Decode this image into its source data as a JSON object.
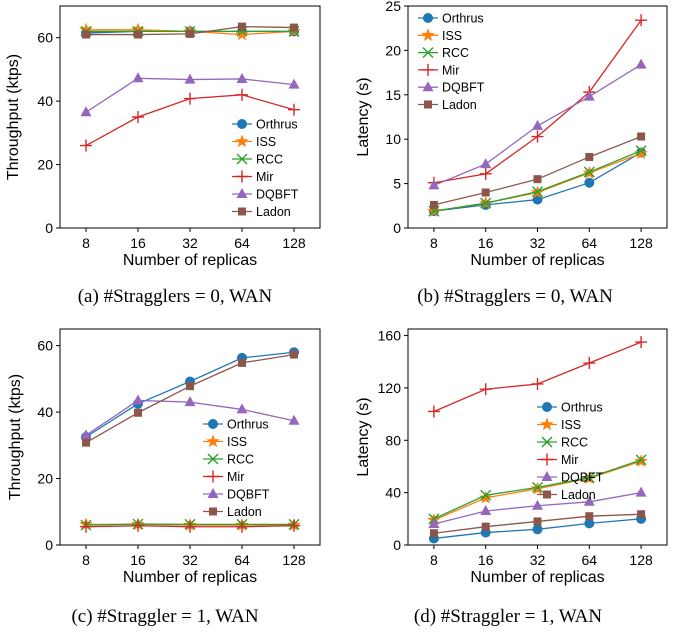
{
  "figure": {
    "colors": {
      "Orthrus": "#1f77b4",
      "ISS": "#ff7f0e",
      "RCC": "#2ca02c",
      "Mir": "#d62728",
      "DQBFT": "#9467bd",
      "Ladon": "#8c564b"
    },
    "markers": {
      "Orthrus": "circle",
      "ISS": "star",
      "RCC": "x",
      "Mir": "plus",
      "DQBFT": "triangle",
      "Ladon": "square"
    }
  },
  "chart_data": [
    {
      "type": "line",
      "caption": "(a)  #Stragglers = 0, WAN",
      "xlabel": "Number of replicas",
      "ylabel": "Throughput (ktps)",
      "categories": [
        "8",
        "16",
        "32",
        "64",
        "128"
      ],
      "ylim": [
        0,
        70
      ],
      "yticks": [
        0,
        20,
        40,
        60
      ],
      "legend": "bottom-right",
      "series": [
        {
          "name": "Orthrus",
          "values": [
            61.5,
            62.0,
            62.0,
            62.0,
            62.0
          ]
        },
        {
          "name": "ISS",
          "values": [
            62.5,
            62.5,
            62.0,
            61.0,
            62.0
          ]
        },
        {
          "name": "RCC",
          "values": [
            62.0,
            62.0,
            62.0,
            62.0,
            62.0
          ]
        },
        {
          "name": "Mir",
          "values": [
            26.0,
            35.0,
            40.8,
            42.0,
            37.3
          ]
        },
        {
          "name": "DQBFT",
          "values": [
            36.5,
            47.2,
            46.8,
            47.0,
            45.2
          ]
        },
        {
          "name": "Ladon",
          "values": [
            61.0,
            61.0,
            61.2,
            63.5,
            63.2
          ]
        }
      ]
    },
    {
      "type": "line",
      "caption": "(b)  #Stragglers = 0, WAN",
      "xlabel": "Number of replicas",
      "ylabel": "Latency (s)",
      "categories": [
        "8",
        "16",
        "32",
        "64",
        "128"
      ],
      "ylim": [
        0,
        25
      ],
      "yticks": [
        0,
        5,
        10,
        15,
        20,
        25
      ],
      "legend": "top-left",
      "series": [
        {
          "name": "Orthrus",
          "values": [
            1.9,
            2.6,
            3.2,
            5.1,
            8.5
          ]
        },
        {
          "name": "ISS",
          "values": [
            1.9,
            2.8,
            4.0,
            6.2,
            8.4
          ]
        },
        {
          "name": "RCC",
          "values": [
            1.9,
            2.8,
            4.1,
            6.3,
            8.7
          ]
        },
        {
          "name": "Mir",
          "values": [
            5.1,
            6.1,
            10.3,
            15.3,
            23.4
          ]
        },
        {
          "name": "DQBFT",
          "values": [
            4.8,
            7.2,
            11.5,
            14.8,
            18.4
          ]
        },
        {
          "name": "Ladon",
          "values": [
            2.6,
            4.0,
            5.5,
            8.0,
            10.3
          ]
        }
      ]
    },
    {
      "type": "line",
      "caption": "(c)  #Straggler = 1, WAN",
      "xlabel": "Number of replicas",
      "ylabel": "Throughput (ktps)",
      "categories": [
        "8",
        "16",
        "32",
        "64",
        "128"
      ],
      "ylim": [
        0,
        65
      ],
      "yticks": [
        0,
        20,
        40,
        60
      ],
      "legend": "bottom-right",
      "series": [
        {
          "name": "Orthrus",
          "values": [
            32.5,
            42.5,
            49.2,
            56.3,
            58.0
          ]
        },
        {
          "name": "ISS",
          "values": [
            6.2,
            6.2,
            6.0,
            6.0,
            6.0
          ]
        },
        {
          "name": "RCC",
          "values": [
            6.0,
            6.3,
            6.2,
            6.2,
            6.2
          ]
        },
        {
          "name": "Mir",
          "values": [
            5.5,
            5.8,
            5.5,
            5.5,
            5.8
          ]
        },
        {
          "name": "DQBFT",
          "values": [
            33.0,
            43.5,
            43.0,
            40.8,
            37.4
          ]
        },
        {
          "name": "Ladon",
          "values": [
            30.8,
            39.8,
            47.8,
            54.8,
            57.3
          ]
        }
      ]
    },
    {
      "type": "line",
      "caption": "(d)  #Straggler = 1, WAN",
      "xlabel": "Number of replicas",
      "ylabel": "Latency (s)",
      "categories": [
        "8",
        "16",
        "32",
        "64",
        "128"
      ],
      "ylim": [
        0,
        165
      ],
      "yticks": [
        0,
        40,
        80,
        120,
        160
      ],
      "legend": "right",
      "series": [
        {
          "name": "Orthrus",
          "values": [
            5.0,
            9.5,
            12.0,
            16.5,
            20.0
          ]
        },
        {
          "name": "ISS",
          "values": [
            19.0,
            36.0,
            43.0,
            51.0,
            64.0
          ]
        },
        {
          "name": "RCC",
          "values": [
            20.0,
            38.0,
            44.0,
            51.5,
            65.0
          ]
        },
        {
          "name": "Mir",
          "values": [
            102.0,
            119.0,
            123.0,
            139.0,
            155.0
          ]
        },
        {
          "name": "DQBFT",
          "values": [
            16.0,
            26.0,
            30.0,
            33.0,
            40.0
          ]
        },
        {
          "name": "Ladon",
          "values": [
            9.0,
            14.0,
            18.0,
            22.0,
            23.5
          ]
        }
      ]
    }
  ]
}
